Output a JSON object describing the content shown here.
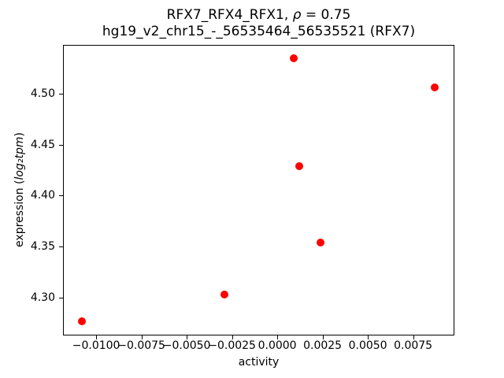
{
  "figure": {
    "title_line1": {
      "prefix": "RFX7_RFX4_RFX1, ",
      "rho": "ρ",
      "suffix": " = 0.75"
    },
    "title_line2": "hg19_v2_chr15_-_56535464_56535521 (RFX7)",
    "xlabel": "activity",
    "ylabel": {
      "prefix": "expression (",
      "math": "log₂tpm",
      "suffix": ")"
    }
  },
  "chart_data": {
    "type": "scatter",
    "title": "RFX7_RFX4_RFX1, ρ = 0.75\nhg19_v2_chr15_-_56535464_56535521 (RFX7)",
    "xlabel": "activity",
    "ylabel": "expression (log₂tpm)",
    "marker_color": "#ff0000",
    "marker_shape": "circle",
    "grid": false,
    "legend": "none",
    "xlim": [
      -0.01183,
      0.00978
    ],
    "ylim": [
      4.2628,
      4.5479
    ],
    "x_ticks": [
      {
        "value": -0.01,
        "label": "−0.0100"
      },
      {
        "value": -0.0075,
        "label": "−0.0075"
      },
      {
        "value": -0.005,
        "label": "−0.0050"
      },
      {
        "value": -0.0025,
        "label": "−0.0025"
      },
      {
        "value": 0.0,
        "label": "0.0000"
      },
      {
        "value": 0.0025,
        "label": "0.0025"
      },
      {
        "value": 0.005,
        "label": "0.0050"
      },
      {
        "value": 0.0075,
        "label": "0.0075"
      }
    ],
    "y_ticks": [
      {
        "value": 4.3,
        "label": "4.30"
      },
      {
        "value": 4.35,
        "label": "4.35"
      },
      {
        "value": 4.4,
        "label": "4.40"
      },
      {
        "value": 4.45,
        "label": "4.45"
      },
      {
        "value": 4.5,
        "label": "4.50"
      }
    ],
    "points": [
      {
        "x": -0.0108,
        "y": 4.277
      },
      {
        "x": -0.0029,
        "y": 4.303
      },
      {
        "x": 0.0024,
        "y": 4.354
      },
      {
        "x": 0.0012,
        "y": 4.429
      },
      {
        "x": 0.0009,
        "y": 4.535
      },
      {
        "x": 0.0087,
        "y": 4.506
      }
    ]
  }
}
